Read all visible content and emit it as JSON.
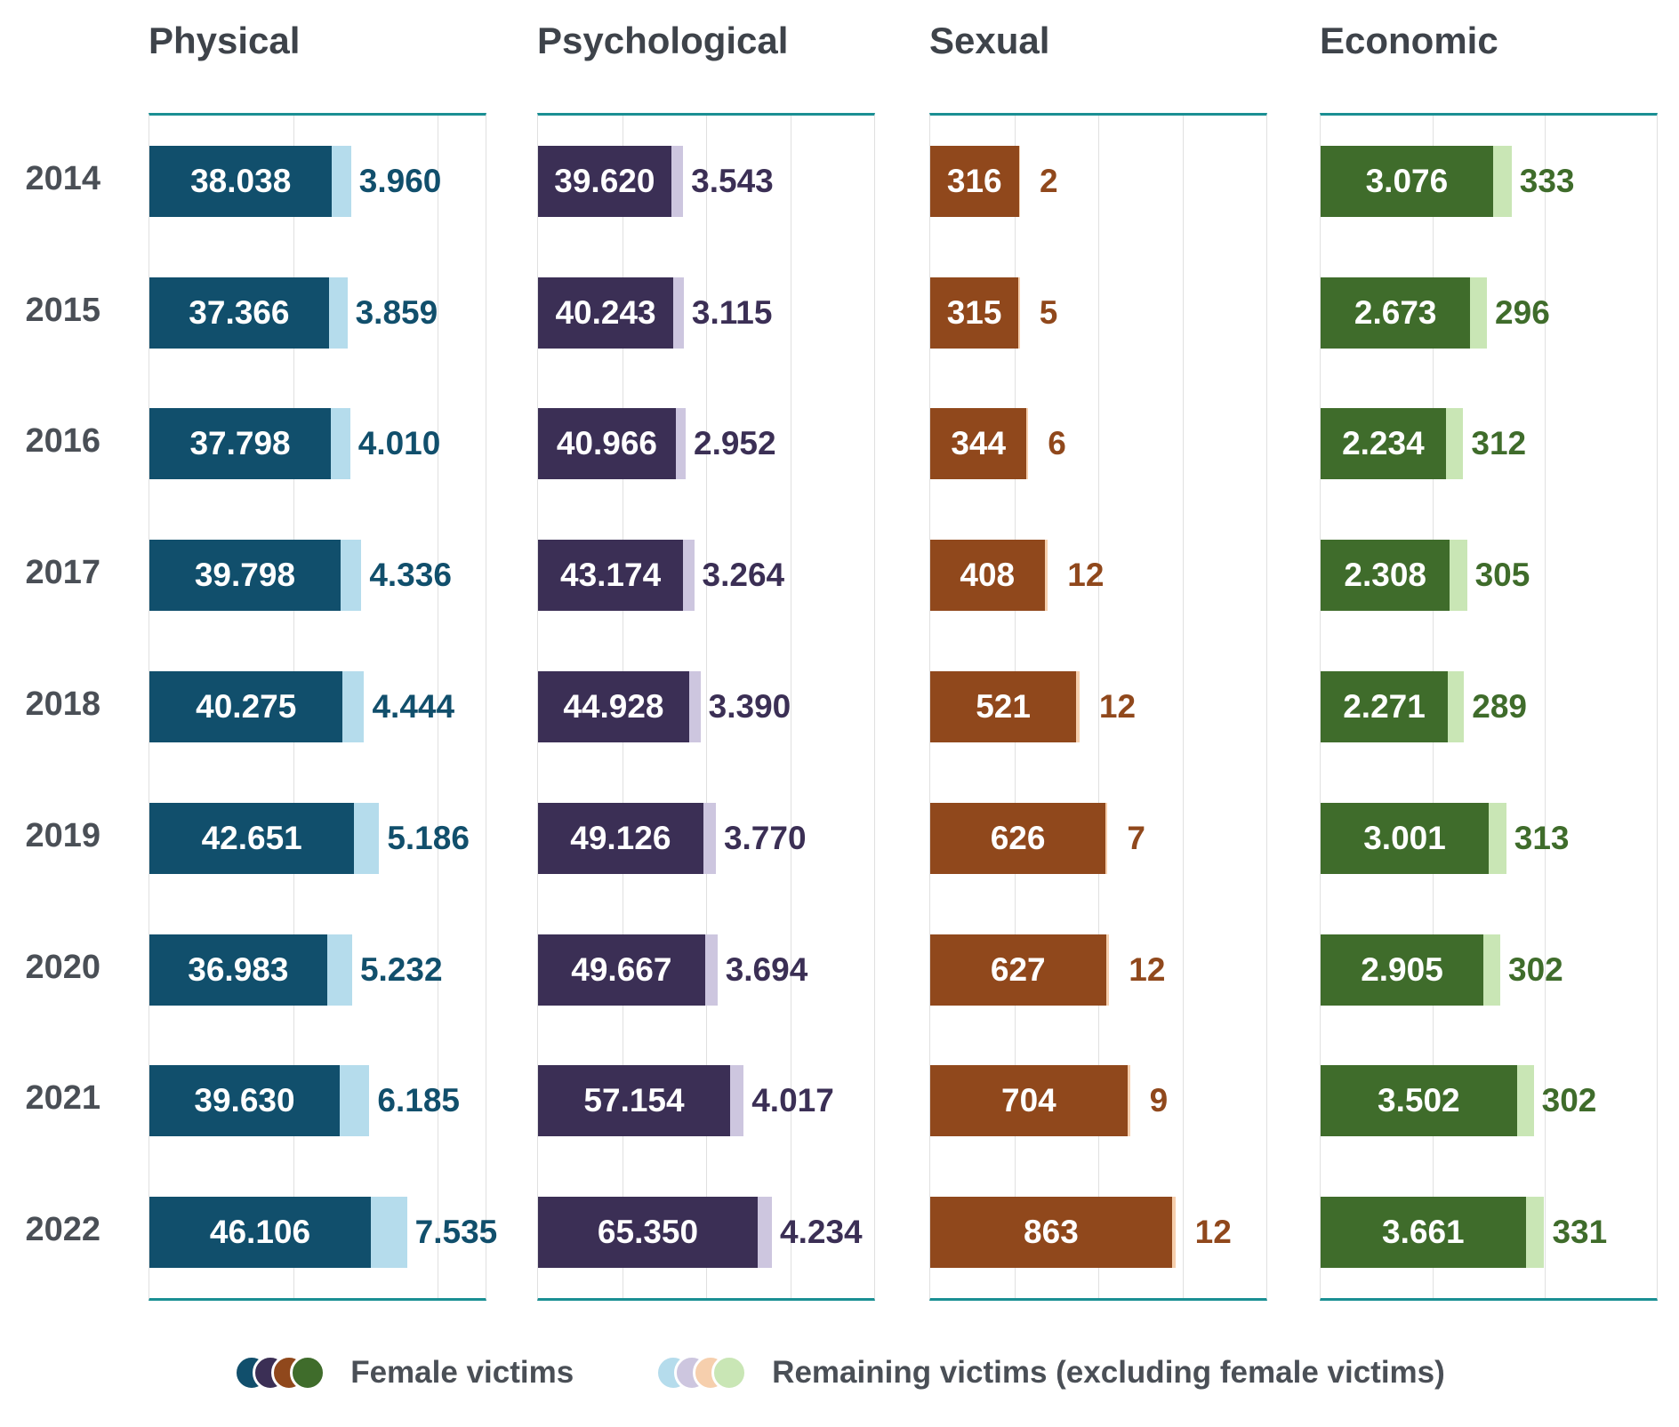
{
  "chart_data": {
    "type": "bar",
    "orientation": "horizontal",
    "grid": true,
    "years": [
      "2014",
      "2015",
      "2016",
      "2017",
      "2018",
      "2019",
      "2020",
      "2021",
      "2022"
    ],
    "legend": {
      "female_label": "Female victims",
      "remaining_label": "Remaining victims (excluding female victims)"
    },
    "axis_color": "#1a8f93",
    "gridline_color": "#e0e0e0",
    "title_color": "#3e434a",
    "label_color": "#4a4f56",
    "panels": [
      {
        "title": "Physical",
        "color": "#114f6c",
        "light_color": "#b5dcec",
        "axis_max": 70000,
        "gridlines": [
          30000,
          60000
        ],
        "female": [
          38038,
          37366,
          37798,
          39798,
          40275,
          42651,
          36983,
          39630,
          46106
        ],
        "female_labels": [
          "38.038",
          "37.366",
          "37.798",
          "39.798",
          "40.275",
          "42.651",
          "36.983",
          "39.630",
          "46.106"
        ],
        "remaining": [
          3960,
          3859,
          4010,
          4336,
          4444,
          5186,
          5232,
          6185,
          7535
        ],
        "remaining_labels": [
          "3.960",
          "3.859",
          "4.010",
          "4.336",
          "4.444",
          "5.186",
          "5.232",
          "6.185",
          "7.535"
        ]
      },
      {
        "title": "Psychological",
        "color": "#3b2f55",
        "light_color": "#cdc6df",
        "axis_max": 100000,
        "gridlines": [
          25000,
          50000,
          75000
        ],
        "female": [
          39620,
          40243,
          40966,
          43174,
          44928,
          49126,
          49667,
          57154,
          65350
        ],
        "female_labels": [
          "39.620",
          "40.243",
          "40.966",
          "43.174",
          "44.928",
          "49.126",
          "49.667",
          "57.154",
          "65.350"
        ],
        "remaining": [
          3543,
          3115,
          2952,
          3264,
          3390,
          3770,
          3694,
          4017,
          4234
        ],
        "remaining_labels": [
          "3.543",
          "3.115",
          "2.952",
          "3.264",
          "3.390",
          "3.770",
          "3.694",
          "4.017",
          "4.234"
        ]
      },
      {
        "title": "Sexual",
        "color": "#90481c",
        "light_color": "#f6cfad",
        "axis_max": 1200,
        "gridlines": [
          300,
          600,
          900
        ],
        "female": [
          316,
          315,
          344,
          408,
          521,
          626,
          627,
          704,
          863
        ],
        "female_labels": [
          "316",
          "315",
          "344",
          "408",
          "521",
          "626",
          "627",
          "704",
          "863"
        ],
        "remaining": [
          2,
          5,
          6,
          12,
          12,
          7,
          12,
          9,
          12
        ],
        "remaining_labels": [
          "2",
          "5",
          "6",
          "12",
          "12",
          "7",
          "12",
          "9",
          "12"
        ]
      },
      {
        "title": "Economic",
        "color": "#3f6c2b",
        "light_color": "#c9e6b5",
        "axis_max": 6000,
        "gridlines": [
          2000,
          4000
        ],
        "female": [
          3076,
          2673,
          2234,
          2308,
          2271,
          3001,
          2905,
          3502,
          3661
        ],
        "female_labels": [
          "3.076",
          "2.673",
          "2.234",
          "2.308",
          "2.271",
          "3.001",
          "2.905",
          "3.502",
          "3.661"
        ],
        "remaining": [
          333,
          296,
          312,
          305,
          289,
          313,
          302,
          302,
          331
        ],
        "remaining_labels": [
          "333",
          "296",
          "312",
          "305",
          "289",
          "313",
          "302",
          "302",
          "331"
        ]
      }
    ]
  }
}
